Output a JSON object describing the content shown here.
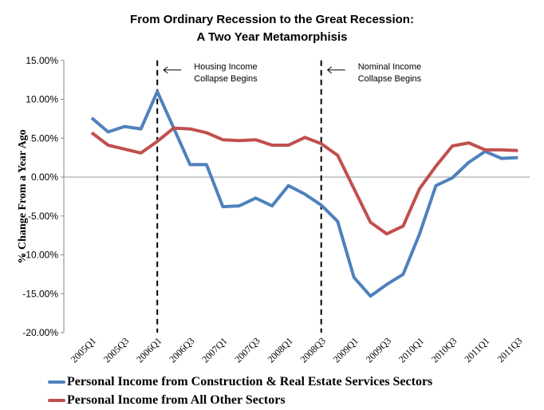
{
  "chart_data": {
    "type": "line",
    "title": [
      "From Ordinary Recession to the Great Recession:",
      "A Two Year Metamorphisis"
    ],
    "ylabel": "% Change From a Year Ago",
    "xlabel": "",
    "ylim": [
      -20,
      15
    ],
    "yticks": [
      "15.00%",
      "10.00%",
      "5.00%",
      "0.00%",
      "-5.00%",
      "-10.00%",
      "-15.00%",
      "-20.00%"
    ],
    "ytick_values": [
      15,
      10,
      5,
      0,
      -5,
      -10,
      -15,
      -20
    ],
    "x": [
      "2005Q1",
      "2005Q2",
      "2005Q3",
      "2005Q4",
      "2006Q1",
      "2006Q2",
      "2006Q3",
      "2006Q4",
      "2007Q1",
      "2007Q2",
      "2007Q3",
      "2007Q4",
      "2008Q1",
      "2008Q2",
      "2008Q3",
      "2008Q4",
      "2009Q1",
      "2009Q2",
      "2009Q3",
      "2009Q4",
      "2010Q1",
      "2010Q2",
      "2010Q3",
      "2010Q4",
      "2011Q1",
      "2011Q2",
      "2011Q3"
    ],
    "xtick_labels": [
      "2005Q1",
      "2005Q3",
      "2006Q1",
      "2006Q3",
      "2007Q1",
      "2007Q3",
      "2008Q1",
      "2008Q3",
      "2009Q1",
      "2009Q3",
      "2010Q1",
      "2010Q3",
      "2011Q1",
      "2011Q3"
    ],
    "series": [
      {
        "name": "Personal Income from Construction & Real Estate Services Sectors",
        "color": "#4F81BD",
        "values": [
          7.6,
          5.8,
          6.5,
          6.2,
          11.0,
          6.3,
          1.6,
          1.6,
          -3.8,
          -3.7,
          -2.7,
          -3.7,
          -1.1,
          -2.2,
          -3.6,
          -5.7,
          -12.9,
          -15.3,
          -13.8,
          -12.5,
          -7.3,
          -1.1,
          -0.1,
          1.9,
          3.3,
          2.4,
          2.5
        ]
      },
      {
        "name": "Personal Income from All Other Sectors",
        "color": "#C0504D",
        "values": [
          5.7,
          4.1,
          3.6,
          3.1,
          4.6,
          6.3,
          6.2,
          5.7,
          4.8,
          4.7,
          4.8,
          4.1,
          4.1,
          5.1,
          4.3,
          2.8,
          -1.5,
          -5.8,
          -7.3,
          -6.3,
          -1.5,
          1.4,
          4.0,
          4.4,
          3.5,
          3.5,
          3.4
        ]
      }
    ],
    "annotations": [
      {
        "at": "2006Q1",
        "text": [
          "Housing Income",
          "Collapse Begins"
        ]
      },
      {
        "at": "2008Q3",
        "text": [
          "Nominal Income",
          "Collapse Begins"
        ]
      }
    ],
    "grid": false,
    "legend_position": "bottom"
  }
}
